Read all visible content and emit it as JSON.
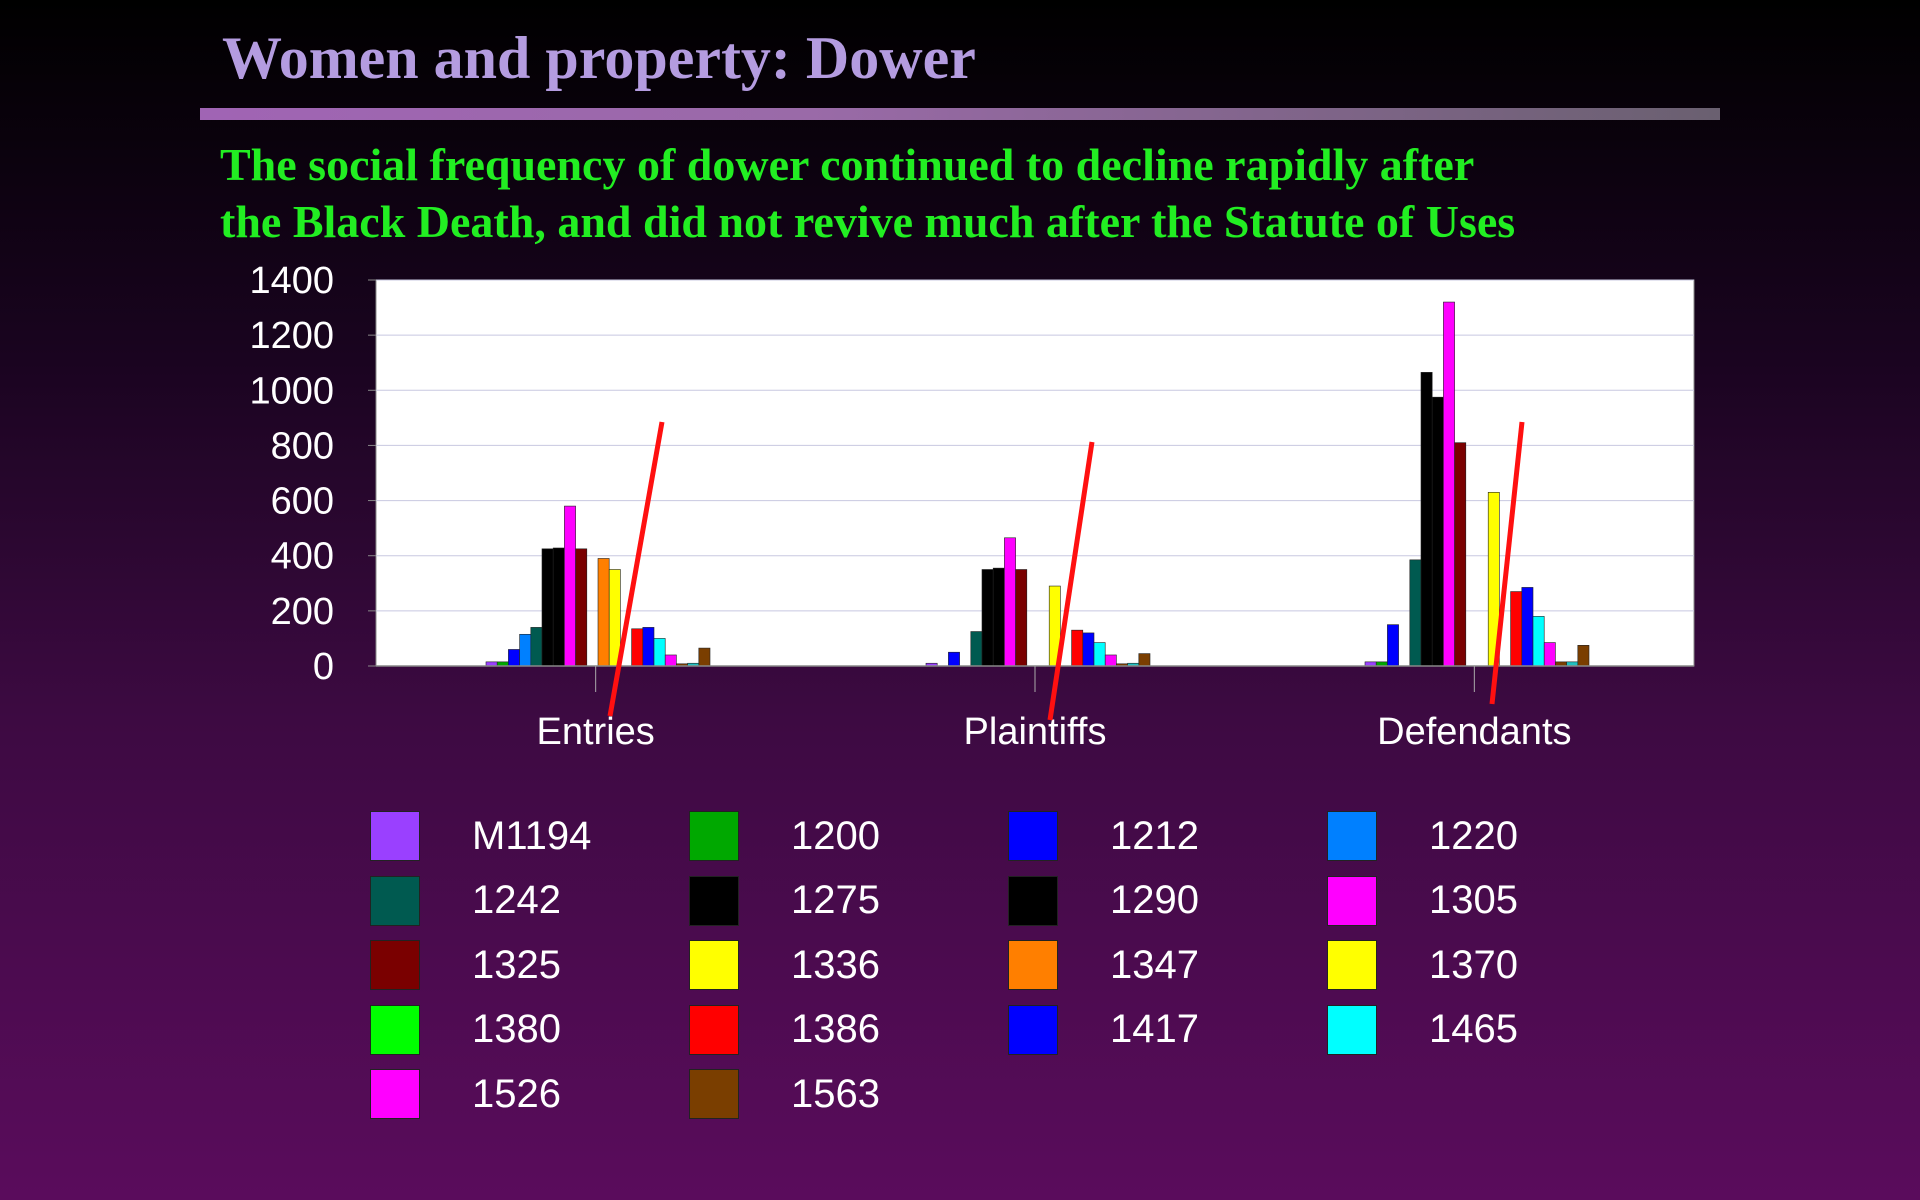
{
  "slide": {
    "title": "Women and property: Dower",
    "subtitle_line1": "The social frequency of dower continued to decline rapidly after",
    "subtitle_line2": "the Black Death, and did not revive much after the Statute of Uses"
  },
  "chart_data": {
    "type": "bar",
    "categories": [
      "Entries",
      "Plaintiffs",
      "Defendants"
    ],
    "ylim": [
      0,
      1400
    ],
    "yticks": [
      0,
      200,
      400,
      600,
      800,
      1000,
      1200,
      1400
    ],
    "grid": true,
    "legend_position": "bottom",
    "series": [
      {
        "name": "M1194",
        "color": "#9a40ff",
        "values": [
          15,
          10,
          15
        ]
      },
      {
        "name": "1200",
        "color": "#00a800",
        "values": [
          15,
          0,
          15
        ]
      },
      {
        "name": "1212",
        "color": "#0000ff",
        "values": [
          60,
          50,
          150
        ]
      },
      {
        "name": "1220",
        "color": "#0080ff",
        "values": [
          115,
          0,
          0
        ]
      },
      {
        "name": "1242",
        "color": "#005a50",
        "values": [
          140,
          125,
          385
        ]
      },
      {
        "name": "1275",
        "color": "#000000",
        "values": [
          425,
          350,
          1065
        ]
      },
      {
        "name": "1290",
        "color": "#000000",
        "values": [
          428,
          355,
          975
        ]
      },
      {
        "name": "1305",
        "color": "#ff00ff",
        "values": [
          580,
          465,
          1320
        ]
      },
      {
        "name": "1325",
        "color": "#7a0000",
        "values": [
          425,
          350,
          810
        ]
      },
      {
        "name": "1336",
        "color": "#ffff00",
        "values": [
          0,
          0,
          0
        ]
      },
      {
        "name": "1347",
        "color": "#ff7f00",
        "values": [
          390,
          0,
          0
        ]
      },
      {
        "name": "1370",
        "color": "#ffff00",
        "values": [
          350,
          290,
          630
        ]
      },
      {
        "name": "1380",
        "color": "#00ff00",
        "values": [
          0,
          0,
          0
        ]
      },
      {
        "name": "1386",
        "color": "#ff0000",
        "values": [
          135,
          130,
          270
        ]
      },
      {
        "name": "1417",
        "color": "#0000ff",
        "values": [
          140,
          120,
          285
        ]
      },
      {
        "name": "1465",
        "color": "#00ffff",
        "values": [
          100,
          85,
          180
        ]
      },
      {
        "name": "1526",
        "color": "#ff00ff",
        "values": [
          40,
          40,
          85
        ]
      },
      {
        "name": "1563",
        "color": "#7a3e00",
        "values": [
          8,
          8,
          15
        ]
      }
    ],
    "extra_bars_note_values": [
      {
        "category": "Entries",
        "values": [
          10,
          65
        ]
      },
      {
        "category": "Plaintiffs",
        "values": [
          10,
          45
        ]
      },
      {
        "category": "Defendants",
        "values": [
          15,
          75
        ]
      }
    ],
    "annotations": "red dividing line in each category",
    "axis_label_color": "#ffffff"
  }
}
